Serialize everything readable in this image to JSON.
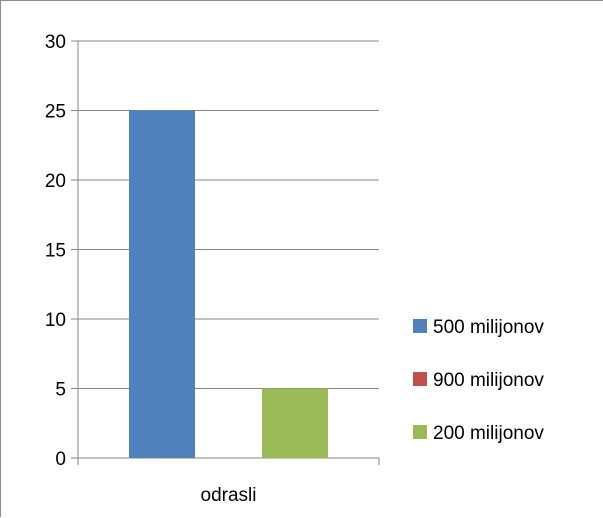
{
  "chart_data": {
    "type": "bar",
    "categories": [
      "odrasli"
    ],
    "series": [
      {
        "name": "500 milijonov",
        "values": [
          25
        ],
        "color": "#4f81bd"
      },
      {
        "name": "900 milijonov",
        "values": [
          0
        ],
        "color": "#c0504d"
      },
      {
        "name": "200 milijonov",
        "values": [
          5
        ],
        "color": "#9bbb59"
      }
    ],
    "ylim": [
      0,
      30
    ],
    "yticks": [
      "0",
      "5",
      "10",
      "15",
      "20",
      "25",
      "30"
    ],
    "grid": true,
    "legend": "right"
  }
}
